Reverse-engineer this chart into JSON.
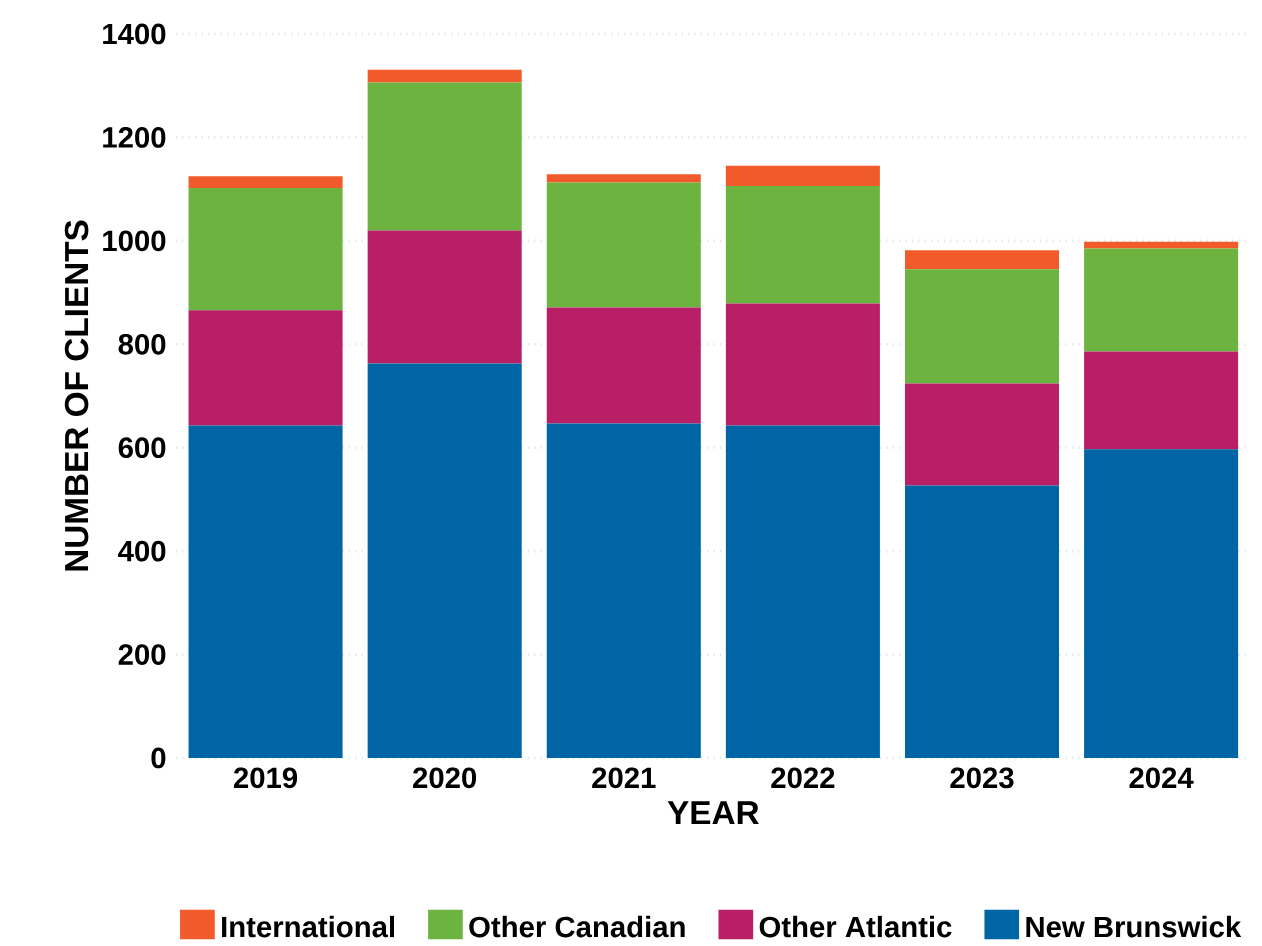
{
  "chart_data": {
    "type": "bar",
    "stacked": true,
    "xlabel": "YEAR",
    "ylabel": "NUMBER OF CLIENTS",
    "categories": [
      "2019",
      "2020",
      "2021",
      "2022",
      "2023",
      "2024"
    ],
    "series": [
      {
        "name": "New Brunswick",
        "color": "#0065a4",
        "values": [
          643,
          763,
          647,
          643,
          527,
          597
        ]
      },
      {
        "name": "Other Atlantic",
        "color": "#b81f66",
        "values": [
          223,
          257,
          224,
          236,
          197,
          189
        ]
      },
      {
        "name": "Other Canadian",
        "color": "#6db33f",
        "values": [
          236,
          286,
          242,
          227,
          221,
          199
        ]
      },
      {
        "name": "International",
        "color": "#f15a2b",
        "values": [
          23,
          25,
          16,
          39,
          37,
          13
        ]
      }
    ],
    "ylim": [
      0,
      1400
    ],
    "yticks": [
      0,
      200,
      400,
      600,
      800,
      1000,
      1200,
      1400
    ],
    "grid": "y",
    "legend": "bottom"
  }
}
